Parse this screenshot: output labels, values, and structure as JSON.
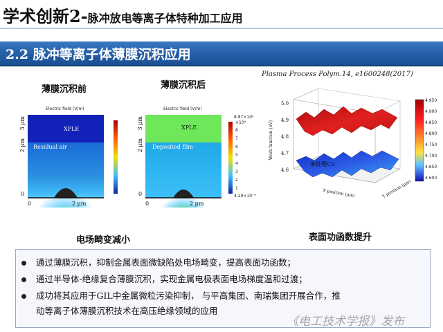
{
  "header": {
    "title_main": "学术创新2-",
    "title_sub": "脉冲放电等离子体特种加工应用"
  },
  "section": {
    "title": "2.2 脉冲等离子体薄膜沉积应用"
  },
  "citation": "Plasma Process Polym.14, e1600248(2017)",
  "figure_left": {
    "label_before": "薄膜沉积前",
    "label_after": "薄膜沉积后",
    "caption": "电场畸变减小",
    "panel_before": {
      "title": "Electric field (V/m)",
      "upper_region": "XPLE",
      "lower_region": "Residual air",
      "y_ticks": [
        "3 μm",
        "2 μm",
        "0"
      ],
      "x_ticks": [
        "0",
        "2 μm"
      ]
    },
    "panel_after": {
      "title": "Electric field (V/m)",
      "upper_region": "XPLE",
      "lower_region": "Deposited film",
      "y_ticks": [
        "3 μm",
        "2 μm",
        "0"
      ],
      "x_ticks": [
        "0",
        "2 μm"
      ],
      "colorbar_max": "8.87×10⁴",
      "colorbar_mid": "×10⁴",
      "colorbar_ticks": [
        "8",
        "7",
        "6",
        "5",
        "4",
        "3",
        "2",
        "1"
      ],
      "colorbar_min": "4.29×10⁻⁹"
    }
  },
  "figure_right": {
    "caption": "表面功函数提升",
    "z_axis_label": "Work function (eV)",
    "z_ticks": [
      "5.0",
      "4.9",
      "4.8",
      "4.7",
      "4.6"
    ],
    "x_axis_label": "X position (μm)",
    "y_axis_label": "Y position (μm)",
    "surface_label": "未处理Cu",
    "colorbar_ticks": [
      "4.950",
      "4.900",
      "4.850",
      "4.800",
      "4.750",
      "4.700",
      "4.650",
      "4.600"
    ],
    "colors": {
      "high": "#c81414",
      "low": "#1c3fd0"
    }
  },
  "bullets": [
    "通过薄膜沉积，抑制金属表面微缺陷处电场畸变，提高表面功函数；",
    "通过半导体-绝缘复合薄膜沉积，实现金属电极表面电场梯度温和过渡；",
    "成功将其应用于GIL中金属微粒污染抑制， 与平高集团、南瑞集团开展合作，推",
    "动等离子体薄膜沉积技术在高压绝缘领域的应用"
  ],
  "watermark": "《电工技术学报》发布"
}
